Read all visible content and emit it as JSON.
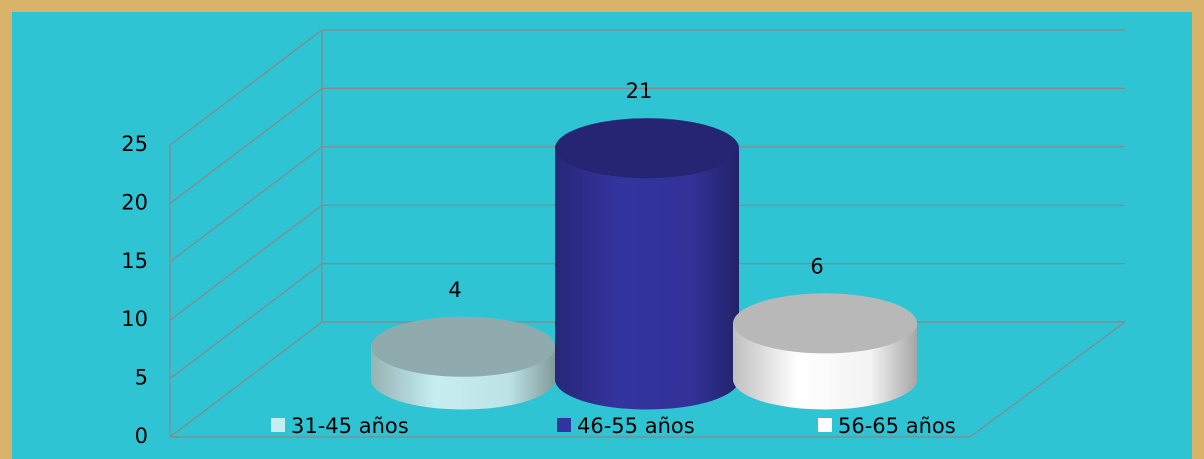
{
  "chart_data": {
    "type": "bar",
    "series": [
      {
        "name": "31-45 años",
        "color": "#c6eef0",
        "values": [
          4
        ]
      },
      {
        "name": "46-55 años",
        "color": "#3434a0",
        "values": [
          21
        ]
      },
      {
        "name": "56-65 años",
        "color": "#ffffff",
        "values": [
          6
        ]
      }
    ],
    "ylim": [
      0,
      25
    ],
    "yticks": [
      0,
      5,
      10,
      15,
      20,
      25
    ],
    "grid": true,
    "legend": "bottom"
  }
}
